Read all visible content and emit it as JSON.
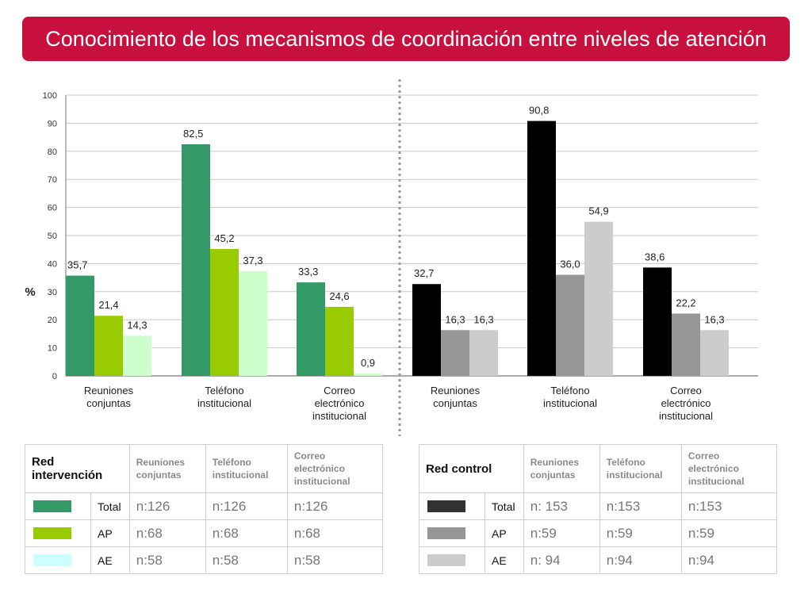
{
  "title": "Conocimiento de los mecanismos de coordinación entre niveles de atención",
  "colors": {
    "banner": "#c8103e",
    "intervencion": {
      "Total": "#339966",
      "AP": "#99cc00",
      "AE": "#ccffcc"
    },
    "control": {
      "Total": "#000000",
      "AP": "#969696",
      "AE": "#cccccc"
    }
  },
  "chart_data": {
    "type": "bar",
    "ylabel": "%",
    "ylim": [
      0,
      100
    ],
    "yticks": [
      "0",
      "10",
      "20",
      "30",
      "40",
      "50",
      "60",
      "70",
      "80",
      "90",
      "100"
    ],
    "grid": true,
    "groups": [
      {
        "category": [
          "Reuniones",
          "conjuntas"
        ],
        "red": "intervencion",
        "values": [
          35.7,
          21.4,
          14.3
        ],
        "labels": [
          "35,7",
          "21,4",
          "14,3"
        ]
      },
      {
        "category": [
          "Teléfono",
          "institucional"
        ],
        "red": "intervencion",
        "values": [
          82.5,
          45.2,
          37.3
        ],
        "labels": [
          "82,5",
          "45,2",
          "37,3"
        ]
      },
      {
        "category": [
          "Correo",
          "electrónico",
          "institucional"
        ],
        "red": "intervencion",
        "values": [
          33.3,
          24.6,
          0.9
        ],
        "labels": [
          "33,3",
          "24,6",
          "0,9"
        ]
      },
      {
        "category": [
          "Reuniones",
          "conjuntas"
        ],
        "red": "control",
        "values": [
          32.7,
          16.3,
          16.3
        ],
        "labels": [
          "32,7",
          "16,3",
          "16,3"
        ]
      },
      {
        "category": [
          "Teléfono",
          "institucional"
        ],
        "red": "control",
        "values": [
          90.8,
          36.0,
          54.9
        ],
        "labels": [
          "90,8",
          "36,0",
          "54,9"
        ]
      },
      {
        "category": [
          "Correo",
          "electrónico",
          "institucional"
        ],
        "red": "control",
        "values": [
          38.6,
          22.2,
          16.3
        ],
        "labels": [
          "38,6",
          "22,2",
          "16,3"
        ]
      }
    ]
  },
  "tables": {
    "intervencion": {
      "title": "Red intervención",
      "columns": [
        "Reuniones conjuntas",
        "Teléfono institucional",
        "Correo electrónico institucional"
      ],
      "rows": [
        {
          "label": "Total",
          "color": "#339966",
          "n": [
            "n:126",
            "n:126",
            "n:126"
          ]
        },
        {
          "label": "AP",
          "color": "#99cc00",
          "n": [
            "n:68",
            "n:68",
            "n:68"
          ]
        },
        {
          "label": "AE",
          "color": "#ccffff",
          "n": [
            "n:58",
            "n:58",
            "n:58"
          ]
        }
      ]
    },
    "control": {
      "title": "Red control",
      "columns": [
        "Reuniones conjuntas",
        "Teléfono institucional",
        "Correo electrónico institucional"
      ],
      "rows": [
        {
          "label": "Total",
          "color": "#333333",
          "n": [
            "n: 153",
            "n:153",
            "n:153"
          ]
        },
        {
          "label": "AP",
          "color": "#969696",
          "n": [
            "n:59",
            "n:59",
            "n:59"
          ]
        },
        {
          "label": "AE",
          "color": "#cccccc",
          "n": [
            "n: 94",
            "n:94",
            "n:94"
          ]
        }
      ]
    }
  }
}
